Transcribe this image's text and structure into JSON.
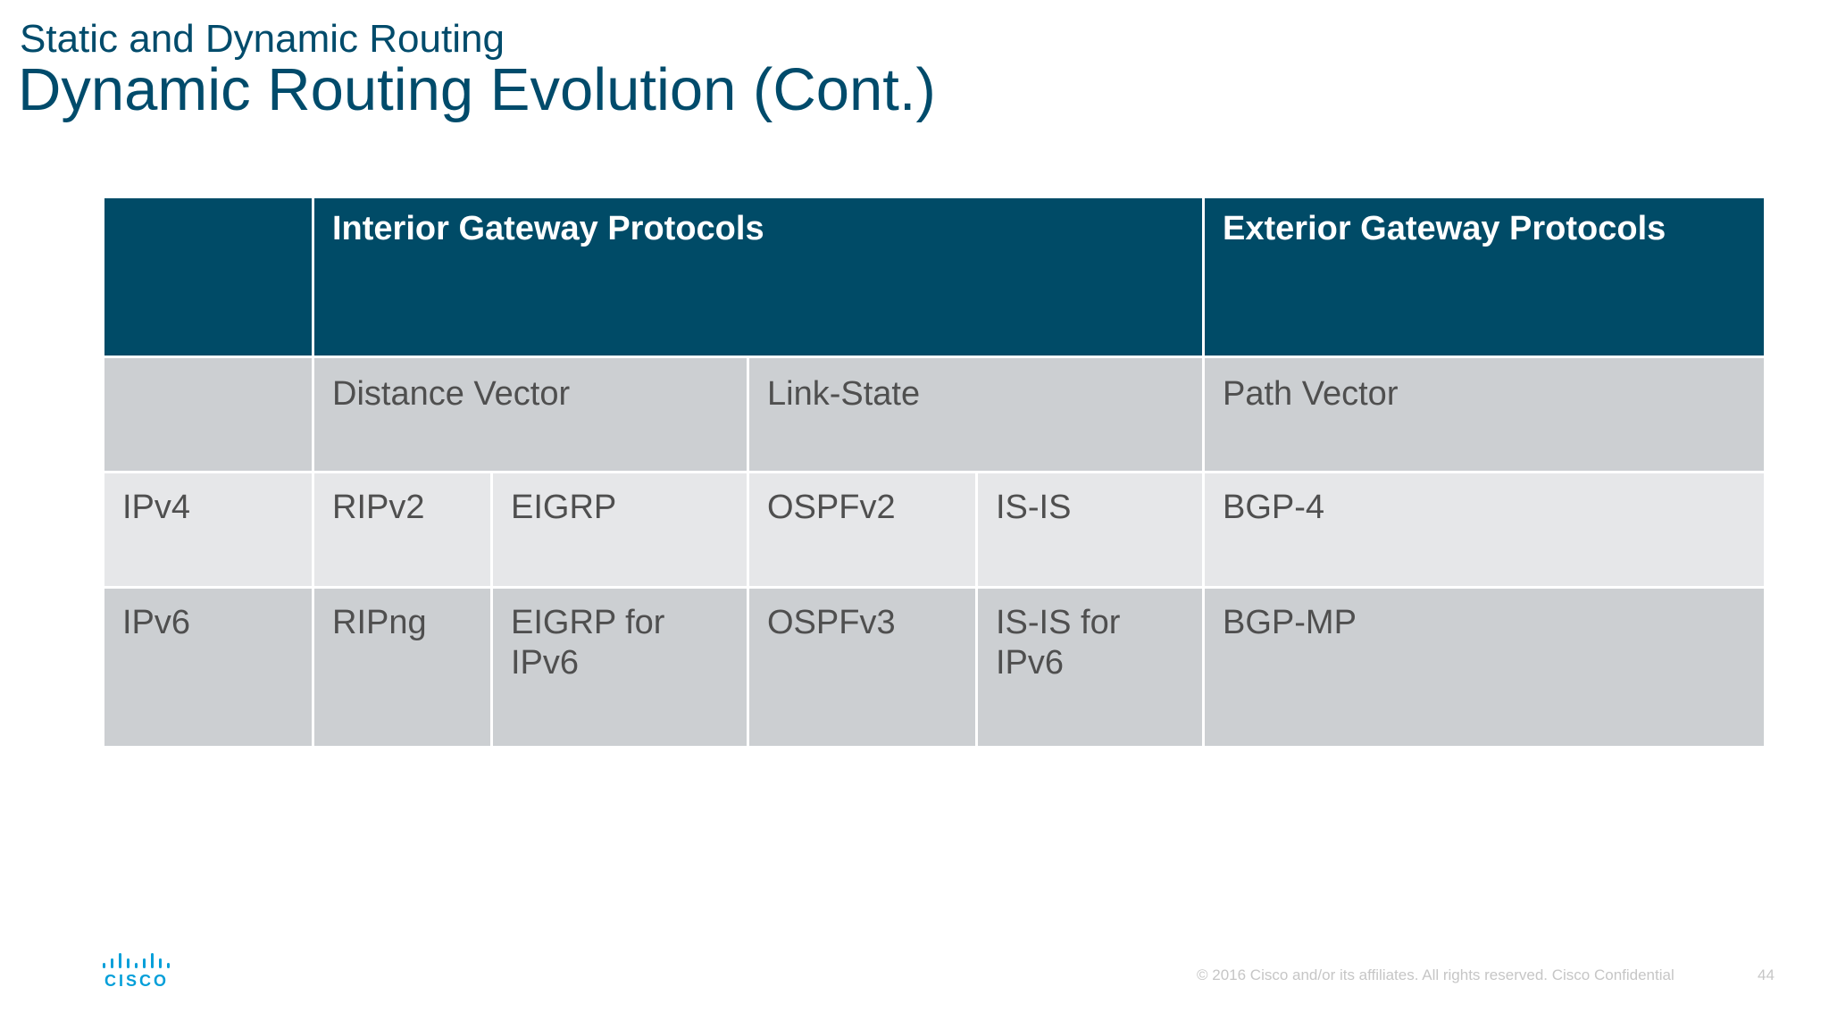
{
  "header": {
    "subtitle": "Static and Dynamic Routing",
    "title": "Dynamic Routing Evolution (Cont.)"
  },
  "table": {
    "header_row": {
      "corner": "",
      "interior": "Interior Gateway Protocols",
      "exterior": "Exterior Gateway Protocols"
    },
    "type_row": {
      "corner": "",
      "distance_vector": "Distance Vector",
      "link_state": "Link-State",
      "path_vector": "Path Vector"
    },
    "rows": [
      {
        "label": "IPv4",
        "cells": [
          "RIPv2",
          "EIGRP",
          "OSPFv2",
          "IS-IS",
          "BGP-4"
        ]
      },
      {
        "label": "IPv6",
        "cells": [
          "RIPng",
          "EIGRP for IPv6",
          "OSPFv3",
          "IS-IS for IPv6",
          "BGP-MP"
        ]
      }
    ]
  },
  "footer": {
    "logo_text": "CISCO",
    "copyright": "© 2016  Cisco and/or its affiliates. All rights reserved.   Cisco Confidential",
    "page_number": "44"
  },
  "colors": {
    "title": "#004b6b",
    "header_bg": "#004b67",
    "gray_row": "#cccfd2",
    "light_row": "#e6e7e9",
    "logo": "#049fd9"
  }
}
